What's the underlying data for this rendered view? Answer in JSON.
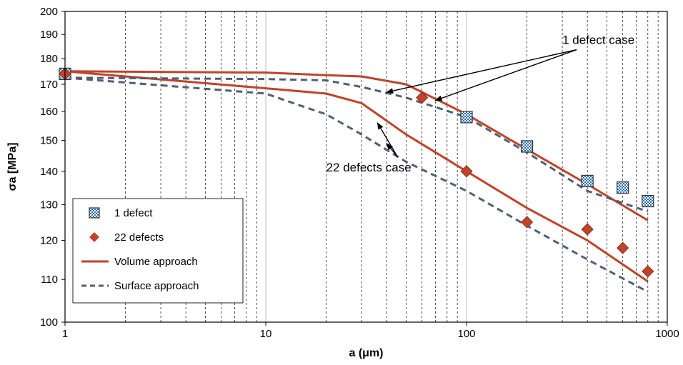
{
  "chart_data": {
    "type": "scatter",
    "xlabel": "a (μm)",
    "ylabel": "σa [MPa]",
    "x_scale": "log",
    "y_scale": "log",
    "xlim": [
      1,
      1000
    ],
    "ylim": [
      100,
      200
    ],
    "x_ticks": [
      1,
      10,
      100,
      1000
    ],
    "x_tick_labels": [
      "1",
      "10",
      "100",
      "1000"
    ],
    "y_ticks": [
      100,
      110,
      120,
      130,
      140,
      150,
      160,
      170,
      180,
      190,
      200
    ],
    "y_tick_labels": [
      "100",
      "110",
      "120",
      "130",
      "140",
      "150",
      "160",
      "170",
      "180",
      "190",
      "200"
    ],
    "grid": "vertical dashed minor, vertical solid major",
    "legend_position": "bottom-left",
    "series": [
      {
        "name": "1 defect",
        "kind": "marker-square",
        "color": "#2e6fb5",
        "x": [
          1,
          100,
          200,
          400,
          600,
          800
        ],
        "y": [
          174,
          158,
          148,
          137,
          135,
          131
        ]
      },
      {
        "name": "22 defects",
        "kind": "marker-diamond",
        "color": "#c0432a",
        "x": [
          1,
          60,
          100,
          200,
          400,
          600,
          800
        ],
        "y": [
          174,
          165,
          140,
          125,
          123,
          118,
          112
        ]
      },
      {
        "name": "Volume approach",
        "kind": "line-solid",
        "color": "#c0432a",
        "x": [
          1,
          10,
          20,
          30,
          50,
          100,
          200,
          400,
          800
        ],
        "y": [
          175,
          174.5,
          173.5,
          173,
          170,
          159,
          147,
          136,
          125.5
        ]
      },
      {
        "name": "",
        "kind": "line-solid",
        "color": "#c0432a",
        "x": [
          1,
          10,
          20,
          30,
          50,
          100,
          200,
          400,
          800
        ],
        "y": [
          175,
          168.5,
          166.5,
          163,
          152,
          140,
          129,
          120,
          109.5
        ]
      },
      {
        "name": "Surface approach",
        "kind": "line-dashed",
        "color": "#4f6075",
        "x": [
          1,
          10,
          20,
          30,
          50,
          100,
          200,
          400,
          800
        ],
        "y": [
          172.5,
          172,
          171.5,
          169,
          165,
          158,
          146,
          134,
          128
        ]
      },
      {
        "name": "",
        "kind": "line-dashed",
        "color": "#4f6075",
        "x": [
          1,
          10,
          15,
          20,
          30,
          50,
          100,
          200,
          400,
          800
        ],
        "y": [
          172.5,
          166.5,
          162,
          159,
          152,
          143,
          134,
          124,
          115,
          107
        ]
      }
    ],
    "annotations": [
      {
        "text": "1 defect case",
        "x": 300,
        "y": 186,
        "arrows_to": [
          [
            40,
            167
          ],
          [
            70,
            164
          ]
        ]
      },
      {
        "text": "22 defects case",
        "x": 20,
        "y": 140,
        "arrows_to": [
          [
            36,
            156
          ],
          [
            40,
            149
          ]
        ]
      }
    ]
  }
}
